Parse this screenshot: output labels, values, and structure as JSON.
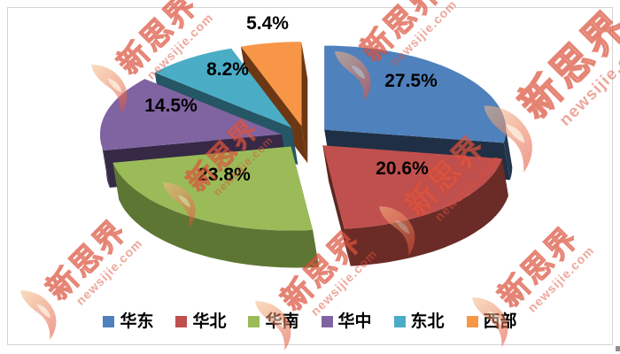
{
  "watermark": {
    "brand": "新思界",
    "domain": "newsijie.com"
  },
  "chart_data": {
    "type": "pie",
    "style": "3d-exploded",
    "title": "",
    "unit": "%",
    "labels_format": "percent",
    "start_angle_deg": 0,
    "clockwise": true,
    "legend_position": "bottom",
    "series": [
      {
        "label": "华东",
        "value": 27.5,
        "color": "#4F81BD",
        "side": "#23374F"
      },
      {
        "label": "华北",
        "value": 20.6,
        "color": "#C0504D",
        "side": "#6B2B27"
      },
      {
        "label": "华南",
        "value": 23.8,
        "color": "#9BBB59",
        "side": "#5E7633"
      },
      {
        "label": "华中",
        "value": 14.5,
        "color": "#8064A2",
        "side": "#3C2F4F"
      },
      {
        "label": "东北",
        "value": 8.2,
        "color": "#4BACC6",
        "side": "#2A6273"
      },
      {
        "label": "西部",
        "value": 5.4,
        "color": "#F79646",
        "side": "#7C3F16"
      }
    ]
  }
}
